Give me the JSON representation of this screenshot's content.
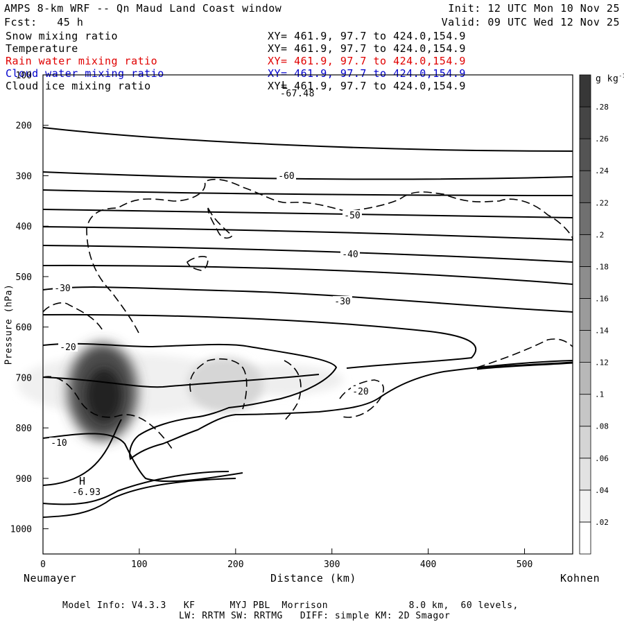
{
  "header": {
    "title": "AMPS 8-km WRF -- Qn Maud Land Coast window",
    "init": "Init: 12 UTC Mon 10 Nov 25",
    "fcst": "Fcst:   45 h",
    "valid": "Valid: 09 UTC Wed 12 Nov 25"
  },
  "fields": [
    {
      "name": "Snow mixing ratio",
      "xy": "XY= 461.9, 97.7 to 424.0,154.9",
      "color": "#000000"
    },
    {
      "name": "Temperature",
      "xy": "XY= 461.9, 97.7 to 424.0,154.9",
      "color": "#000000"
    },
    {
      "name": "Rain water mixing ratio",
      "xy": "XY= 461.9, 97.7 to 424.0,154.9",
      "color": "#e00000"
    },
    {
      "name": "Cloud water mixing ratio",
      "xy": "XY= 461.9, 97.7 to 424.0,154.9",
      "color": "#0000cc"
    },
    {
      "name": "Cloud ice mixing ratio",
      "xy": "XY= 461.9, 97.7 to 424.0,154.9",
      "color": "#000000"
    }
  ],
  "axes": {
    "ylabel": "Pressure (hPa)",
    "xlabel": "Distance (km)",
    "left_end": "Neumayer",
    "right_end": "Kohnen"
  },
  "colorbar": {
    "unit": "g kg",
    "unit_sup": "-1",
    "ticks": [
      ".02",
      ".04",
      ".06",
      ".08",
      ".1",
      ".12",
      ".14",
      ".16",
      ".18",
      ".2",
      ".22",
      ".24",
      ".26",
      ".28"
    ]
  },
  "annotations": {
    "low_label": "L",
    "low_value": "-67.48",
    "high_label": "H",
    "high_value": "-6.93"
  },
  "footer": {
    "line1": "Model Info: V4.3.3   KF      MYJ PBL  Morrison              8.0 km,  60 levels,",
    "line2": "LW: RRTM SW: RRTMG   DIFF: simple KM: 2D Smagor"
  },
  "chart_data": {
    "type": "contour",
    "x_range": [
      0,
      550
    ],
    "y_range": [
      1050,
      100
    ],
    "x_ticks": [
      0,
      100,
      200,
      300,
      400,
      500
    ],
    "y_ticks": [
      100,
      200,
      300,
      400,
      500,
      600,
      700,
      800,
      900,
      1000
    ],
    "temperature_contour_labels": [
      "-60",
      "-50",
      "-40",
      "-30",
      "-30",
      "-20",
      "-20",
      "-10"
    ],
    "snow_maxima": [
      {
        "x": 62,
        "p": 745,
        "value": 0.28
      },
      {
        "x": 195,
        "p": 715,
        "value": 0.1
      }
    ],
    "colorscale_range": [
      0,
      0.3
    ]
  }
}
